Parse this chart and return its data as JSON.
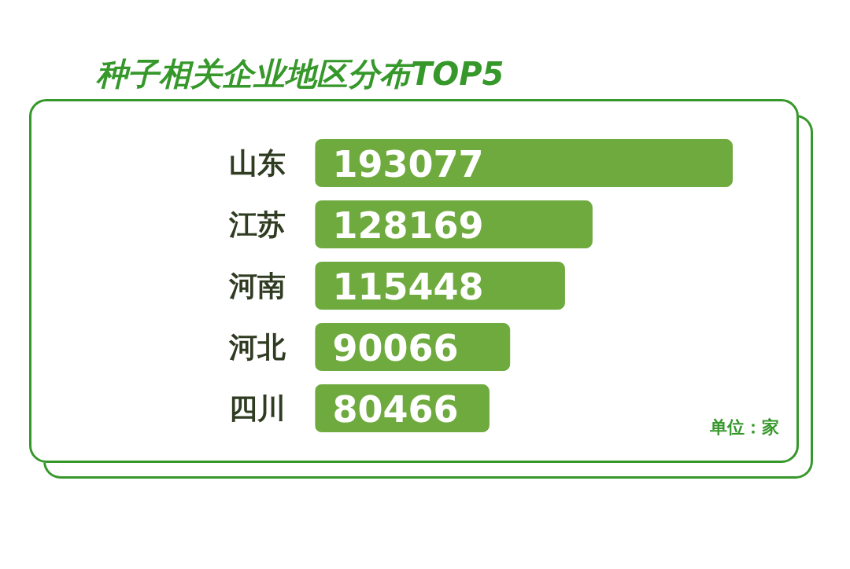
{
  "chart_data": {
    "type": "bar",
    "orientation": "horizontal",
    "title": "种子相关企业地区分布TOP5",
    "categories": [
      "山东",
      "江苏",
      "河南",
      "河北",
      "四川"
    ],
    "values": [
      193077,
      128169,
      115448,
      90066,
      80466
    ],
    "color": "#6eaa3e",
    "data_labels": true,
    "tick_labels": "y",
    "annotations": [
      "单位：家"
    ]
  }
}
